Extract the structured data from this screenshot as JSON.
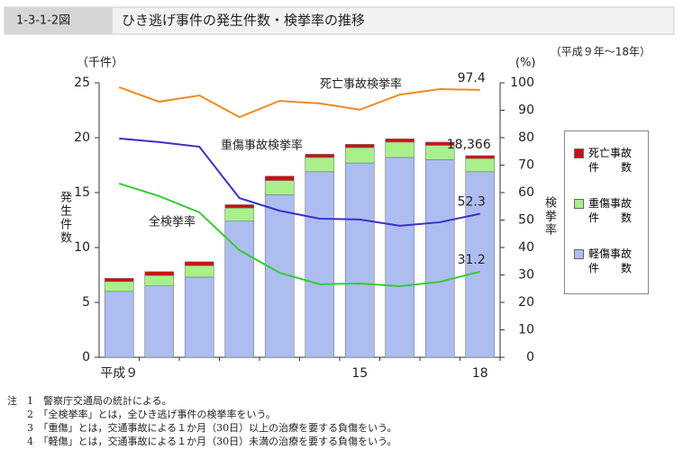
{
  "chart_data": {
    "type": "combo",
    "figure_id": "1-3-1-2図",
    "title": "ひき逃げ事件の発生件数・検挙率の推移",
    "subtitle": "（平成９年～18年）",
    "ylabel": "発生件数",
    "yunit": "（千件）",
    "y2label": "検挙率",
    "y2unit": "(%)",
    "categories": [
      "平成９",
      null,
      null,
      null,
      null,
      null,
      "15",
      null,
      null,
      "18"
    ],
    "ylim": [
      0,
      25
    ],
    "yticks": [
      0,
      5,
      10,
      15,
      20,
      25
    ],
    "y2lim": [
      0,
      100
    ],
    "y2ticks": [
      0,
      10,
      20,
      30,
      40,
      50,
      60,
      70,
      80,
      90,
      100
    ],
    "series": [
      {
        "name": "軽傷事故件数",
        "type": "bar",
        "color": "#aebdf0",
        "values": [
          6.0,
          6.5,
          7.3,
          12.4,
          14.8,
          16.9,
          17.7,
          18.2,
          18.0,
          16.9
        ]
      },
      {
        "name": "重傷事故件数",
        "type": "bar",
        "color": "#a8f08c",
        "values": [
          0.9,
          0.95,
          1.05,
          1.2,
          1.3,
          1.3,
          1.4,
          1.4,
          1.3,
          1.2
        ]
      },
      {
        "name": "死亡事故件数",
        "type": "bar",
        "color": "#cc1010",
        "values": [
          0.3,
          0.35,
          0.35,
          0.3,
          0.4,
          0.3,
          0.3,
          0.3,
          0.3,
          0.266
        ]
      },
      {
        "name": "死亡事故検挙率",
        "type": "line",
        "axis": "y2",
        "color": "#f08a20",
        "values": [
          98.4,
          93.1,
          95.4,
          87.5,
          93.4,
          92.5,
          90.2,
          95.7,
          97.7,
          97.4
        ]
      },
      {
        "name": "重傷事故検挙率",
        "type": "line",
        "axis": "y2",
        "color": "#3a2fc8",
        "values": [
          79.7,
          78.4,
          76.7,
          58.0,
          53.4,
          50.5,
          50.2,
          47.9,
          49.2,
          52.3
        ]
      },
      {
        "name": "全検挙率",
        "type": "line",
        "axis": "y2",
        "color": "#33cc33",
        "values": [
          63.3,
          58.7,
          52.8,
          39.0,
          30.8,
          26.6,
          26.9,
          25.9,
          27.5,
          31.2
        ]
      }
    ],
    "annotations": [
      {
        "label": "18,366",
        "category": "18",
        "value": 18.366
      }
    ],
    "notes_label": "注",
    "notes": [
      "1　警察庁交通局の統計による。",
      "2　「全検挙率」とは，全ひき逃げ事件の検挙率をいう。",
      "3　「重傷」とは，交通事故による１か月（30日）以上の治療を要する負傷をいう。",
      "4　「軽傷」とは，交通事故による１か月（30日）未満の治療を要する負傷をいう。"
    ]
  }
}
